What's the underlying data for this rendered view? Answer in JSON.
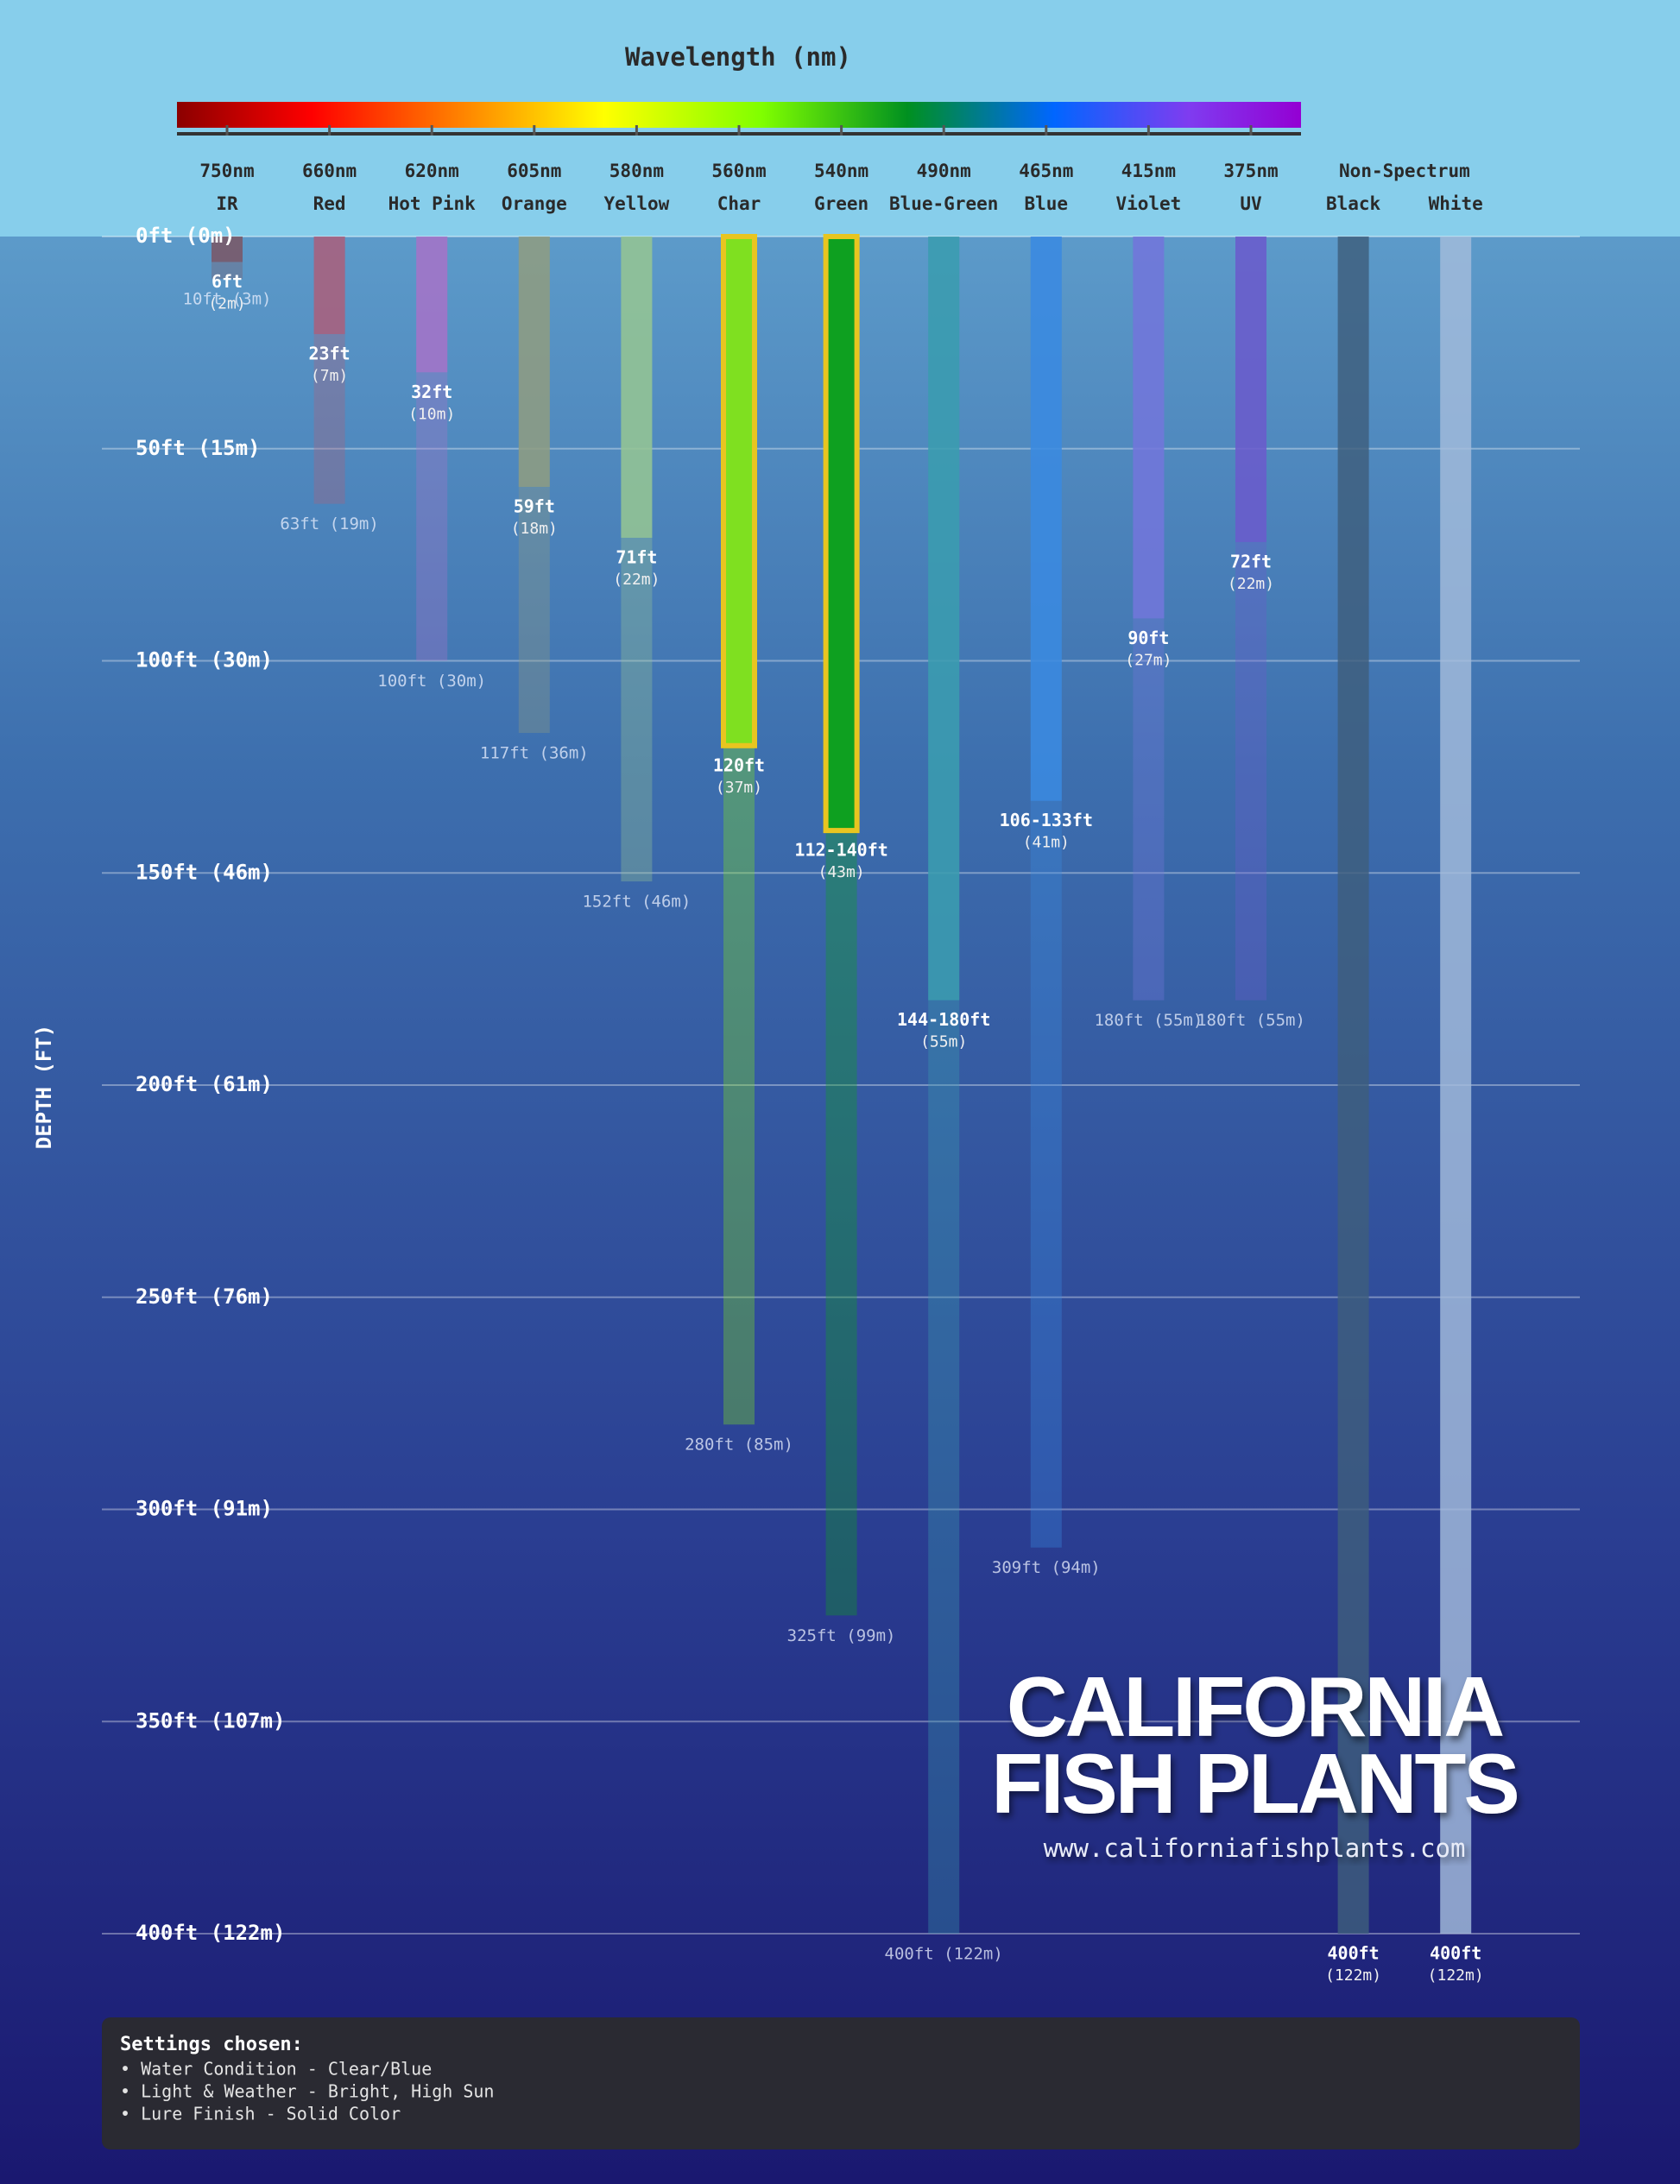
{
  "chart_data": {
    "type": "depth-bar",
    "title": "Wavelength (nm)",
    "y_label": "DEPTH (FT)",
    "categories": [
      "IR",
      "Red",
      "Hot Pink",
      "Orange",
      "Yellow",
      "Char",
      "Green",
      "Blue-Green",
      "Blue",
      "Violet",
      "UV",
      "Black",
      "White"
    ],
    "wavelengths": [
      "750nm",
      "660nm",
      "620nm",
      "605nm",
      "580nm",
      "560nm",
      "540nm",
      "490nm",
      "465nm",
      "415nm",
      "375nm",
      null,
      null
    ],
    "group_label": "Non-Spectrum",
    "values": [
      6,
      23,
      32,
      59,
      71,
      120,
      140,
      180,
      133,
      90,
      72,
      400,
      400
    ],
    "value_labels": [
      "6ft",
      "23ft",
      "32ft",
      "59ft",
      "71ft",
      "120ft",
      "112-140ft",
      "144-180ft",
      "106-133ft",
      "90ft",
      "72ft",
      "400ft",
      "400ft"
    ],
    "meter_labels": [
      "(2m)",
      "(7m)",
      "(10m)",
      "(18m)",
      "(22m)",
      "(37m)",
      "(43m)",
      "(55m)",
      "(41m)",
      "(27m)",
      "(22m)",
      "(122m)",
      "(122m)"
    ],
    "max_values": [
      10,
      63,
      100,
      117,
      152,
      280,
      325,
      400,
      309,
      180,
      180,
      null,
      null
    ],
    "max_value_labels": [
      "10ft (3m)",
      "63ft (19m)",
      "100ft (30m)",
      "117ft (36m)",
      "152ft (46m)",
      "280ft (85m)",
      "325ft (99m)",
      "400ft (122m)",
      "309ft (94m)",
      "180ft (55m)",
      "180ft (55m)",
      null,
      null
    ],
    "colors": [
      "#7a5868",
      "#a8607e",
      "#a474c8",
      "#8e9c82",
      "#94c494",
      "#7fe020",
      "#0ea020",
      "#3a9cb0",
      "#3a8ae0",
      "#7276da",
      "#6a5ccc",
      "#3e5e7c",
      "#a4bcdc"
    ],
    "highlighted": [
      "Char",
      "Green"
    ],
    "highlight_color": "#e8c520",
    "ylim": [
      0,
      400
    ],
    "yticks": [
      {
        "value": 0,
        "label": "0ft (0m)"
      },
      {
        "value": 50,
        "label": "50ft (15m)"
      },
      {
        "value": 100,
        "label": "100ft (30m)"
      },
      {
        "value": 150,
        "label": "150ft (46m)"
      },
      {
        "value": 200,
        "label": "200ft (61m)"
      },
      {
        "value": 250,
        "label": "250ft (76m)"
      },
      {
        "value": 300,
        "label": "300ft (91m)"
      },
      {
        "value": 350,
        "label": "350ft (107m)"
      },
      {
        "value": 400,
        "label": "400ft (122m)"
      }
    ],
    "grid": true
  },
  "logo": {
    "line1": "CALIFORNIA",
    "line2": "FISH PLANTS",
    "url": "www.californiafishplants.com"
  },
  "settings": {
    "title": "Settings chosen:",
    "items": [
      "• Water Condition - Clear/Blue",
      "• Light & Weather - Bright, High Sun",
      "• Lure Finish - Solid Color"
    ]
  }
}
